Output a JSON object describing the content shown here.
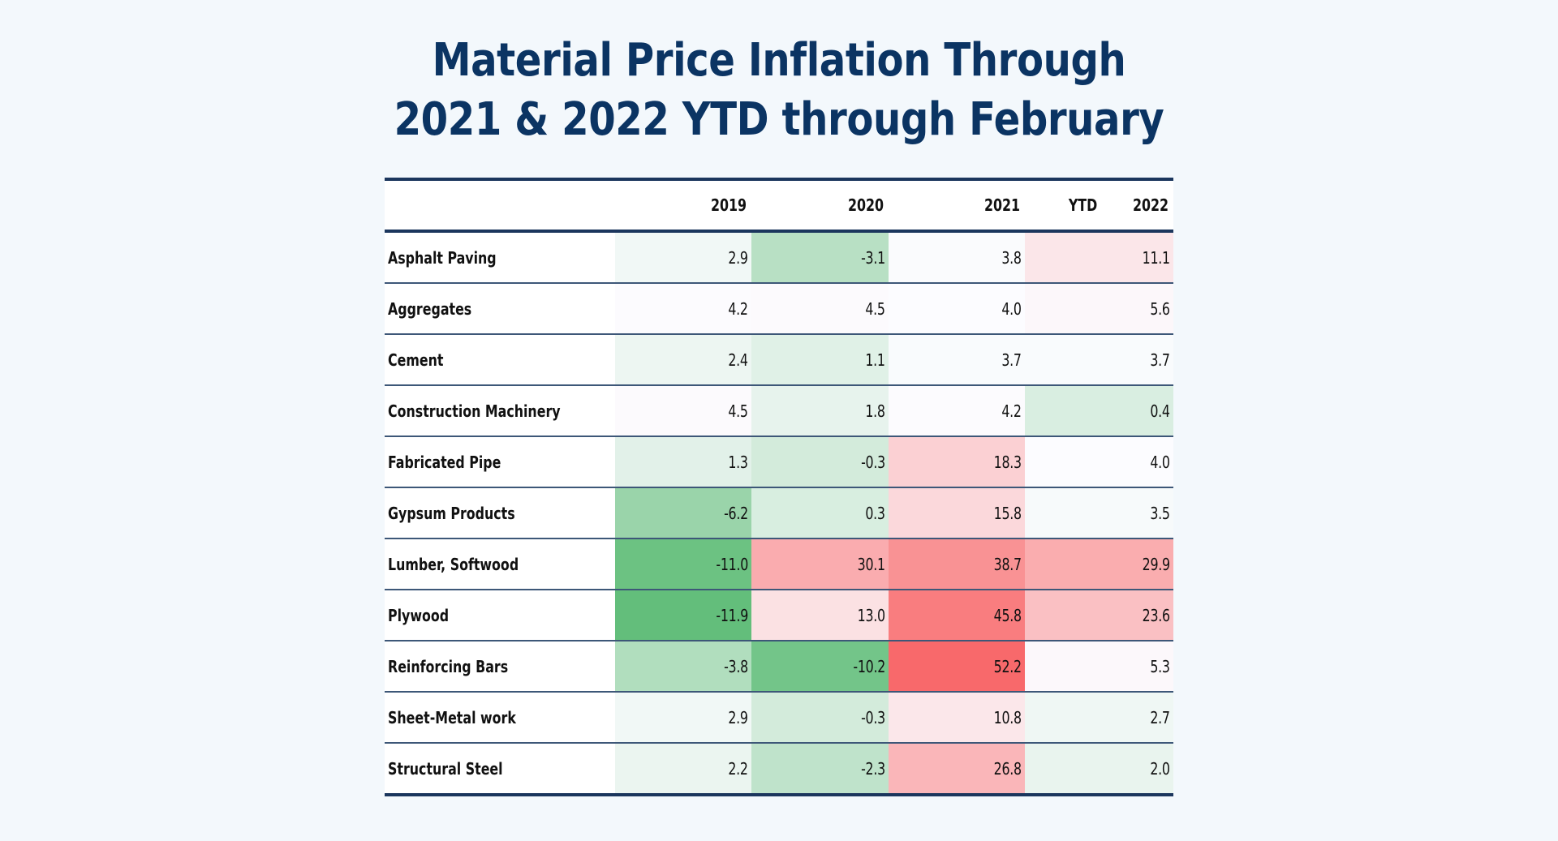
{
  "title": {
    "line1": "Material Price Inflation Through",
    "line2": "2021 & 2022 YTD through February"
  },
  "colors": {
    "title": "#0b3463",
    "rule": "#1b365d",
    "scale_min": "#63be7b",
    "scale_mid": "#fcfcff",
    "scale_max": "#f8696b",
    "background": "#f3f8fc"
  },
  "chart_data": {
    "type": "heatmap",
    "title": "Material Price Inflation Through 2021 & 2022 YTD through February",
    "columns": [
      "2019",
      "2020",
      "2021",
      "YTD 2022"
    ],
    "header": {
      "c2019": "2019",
      "c2020": "2020",
      "c2021": "2021",
      "c2022_prefix": "YTD",
      "c2022": "2022"
    },
    "color_scale": {
      "type": "3-color",
      "min": -11.9,
      "mid": 4.0,
      "max": 52.2,
      "low_meaning": "green (deflation)",
      "high_meaning": "red (inflation)"
    },
    "rows": [
      {
        "label": "Asphalt Paving",
        "values": [
          "2.9",
          "-3.1",
          "3.8",
          "11.1"
        ]
      },
      {
        "label": "Aggregates",
        "values": [
          "4.2",
          "4.5",
          "4.0",
          "5.6"
        ]
      },
      {
        "label": "Cement",
        "values": [
          "2.4",
          "1.1",
          "3.7",
          "3.7"
        ]
      },
      {
        "label": "Construction Machinery",
        "values": [
          "4.5",
          "1.8",
          "4.2",
          "0.4"
        ]
      },
      {
        "label": "Fabricated Pipe",
        "values": [
          "1.3",
          "-0.3",
          "18.3",
          "4.0"
        ]
      },
      {
        "label": "Gypsum Products",
        "values": [
          "-6.2",
          "0.3",
          "15.8",
          "3.5"
        ]
      },
      {
        "label": "Lumber, Softwood",
        "values": [
          "-11.0",
          "30.1",
          "38.7",
          "29.9"
        ]
      },
      {
        "label": "Plywood",
        "values": [
          "-11.9",
          "13.0",
          "45.8",
          "23.6"
        ]
      },
      {
        "label": "Reinforcing Bars",
        "values": [
          "-3.8",
          "-10.2",
          "52.2",
          "5.3"
        ]
      },
      {
        "label": "Sheet-Metal work",
        "values": [
          "2.9",
          "-0.3",
          "10.8",
          "2.7"
        ]
      },
      {
        "label": "Structural Steel",
        "values": [
          "2.2",
          "-2.3",
          "26.8",
          "2.0"
        ]
      }
    ]
  }
}
